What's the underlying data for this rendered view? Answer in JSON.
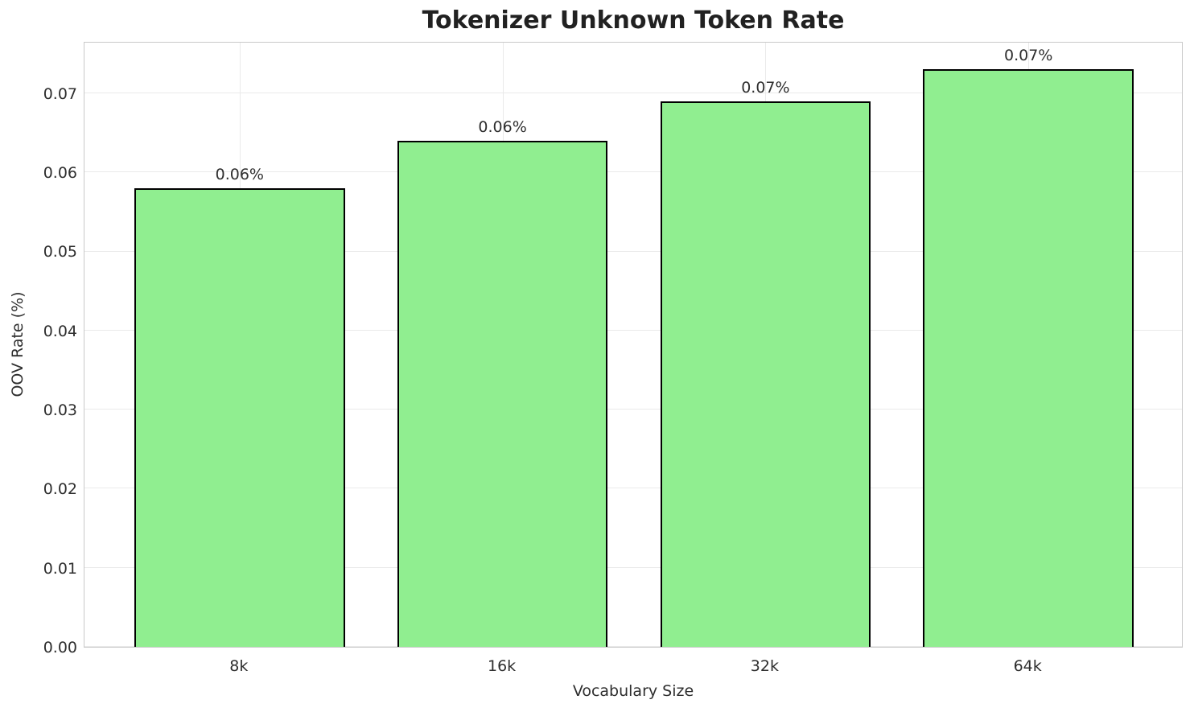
{
  "chart_data": {
    "type": "bar",
    "title": "Tokenizer Unknown Token Rate",
    "xlabel": "Vocabulary Size",
    "ylabel": "OOV Rate (%)",
    "categories": [
      "8k",
      "16k",
      "32k",
      "64k"
    ],
    "values": [
      0.058,
      0.064,
      0.069,
      0.073
    ],
    "bar_labels": [
      "0.06%",
      "0.06%",
      "0.07%",
      "0.07%"
    ],
    "ylim": [
      0,
      0.0766
    ],
    "yticks": [
      0,
      0.01,
      0.02,
      0.03,
      0.04,
      0.05,
      0.06,
      0.07
    ],
    "ytick_labels": [
      "0.00",
      "0.01",
      "0.02",
      "0.03",
      "0.04",
      "0.05",
      "0.06",
      "0.07"
    ],
    "grid": true,
    "legend": "none",
    "bar_color": "#90EE90",
    "bar_edge_color": "#000000"
  }
}
